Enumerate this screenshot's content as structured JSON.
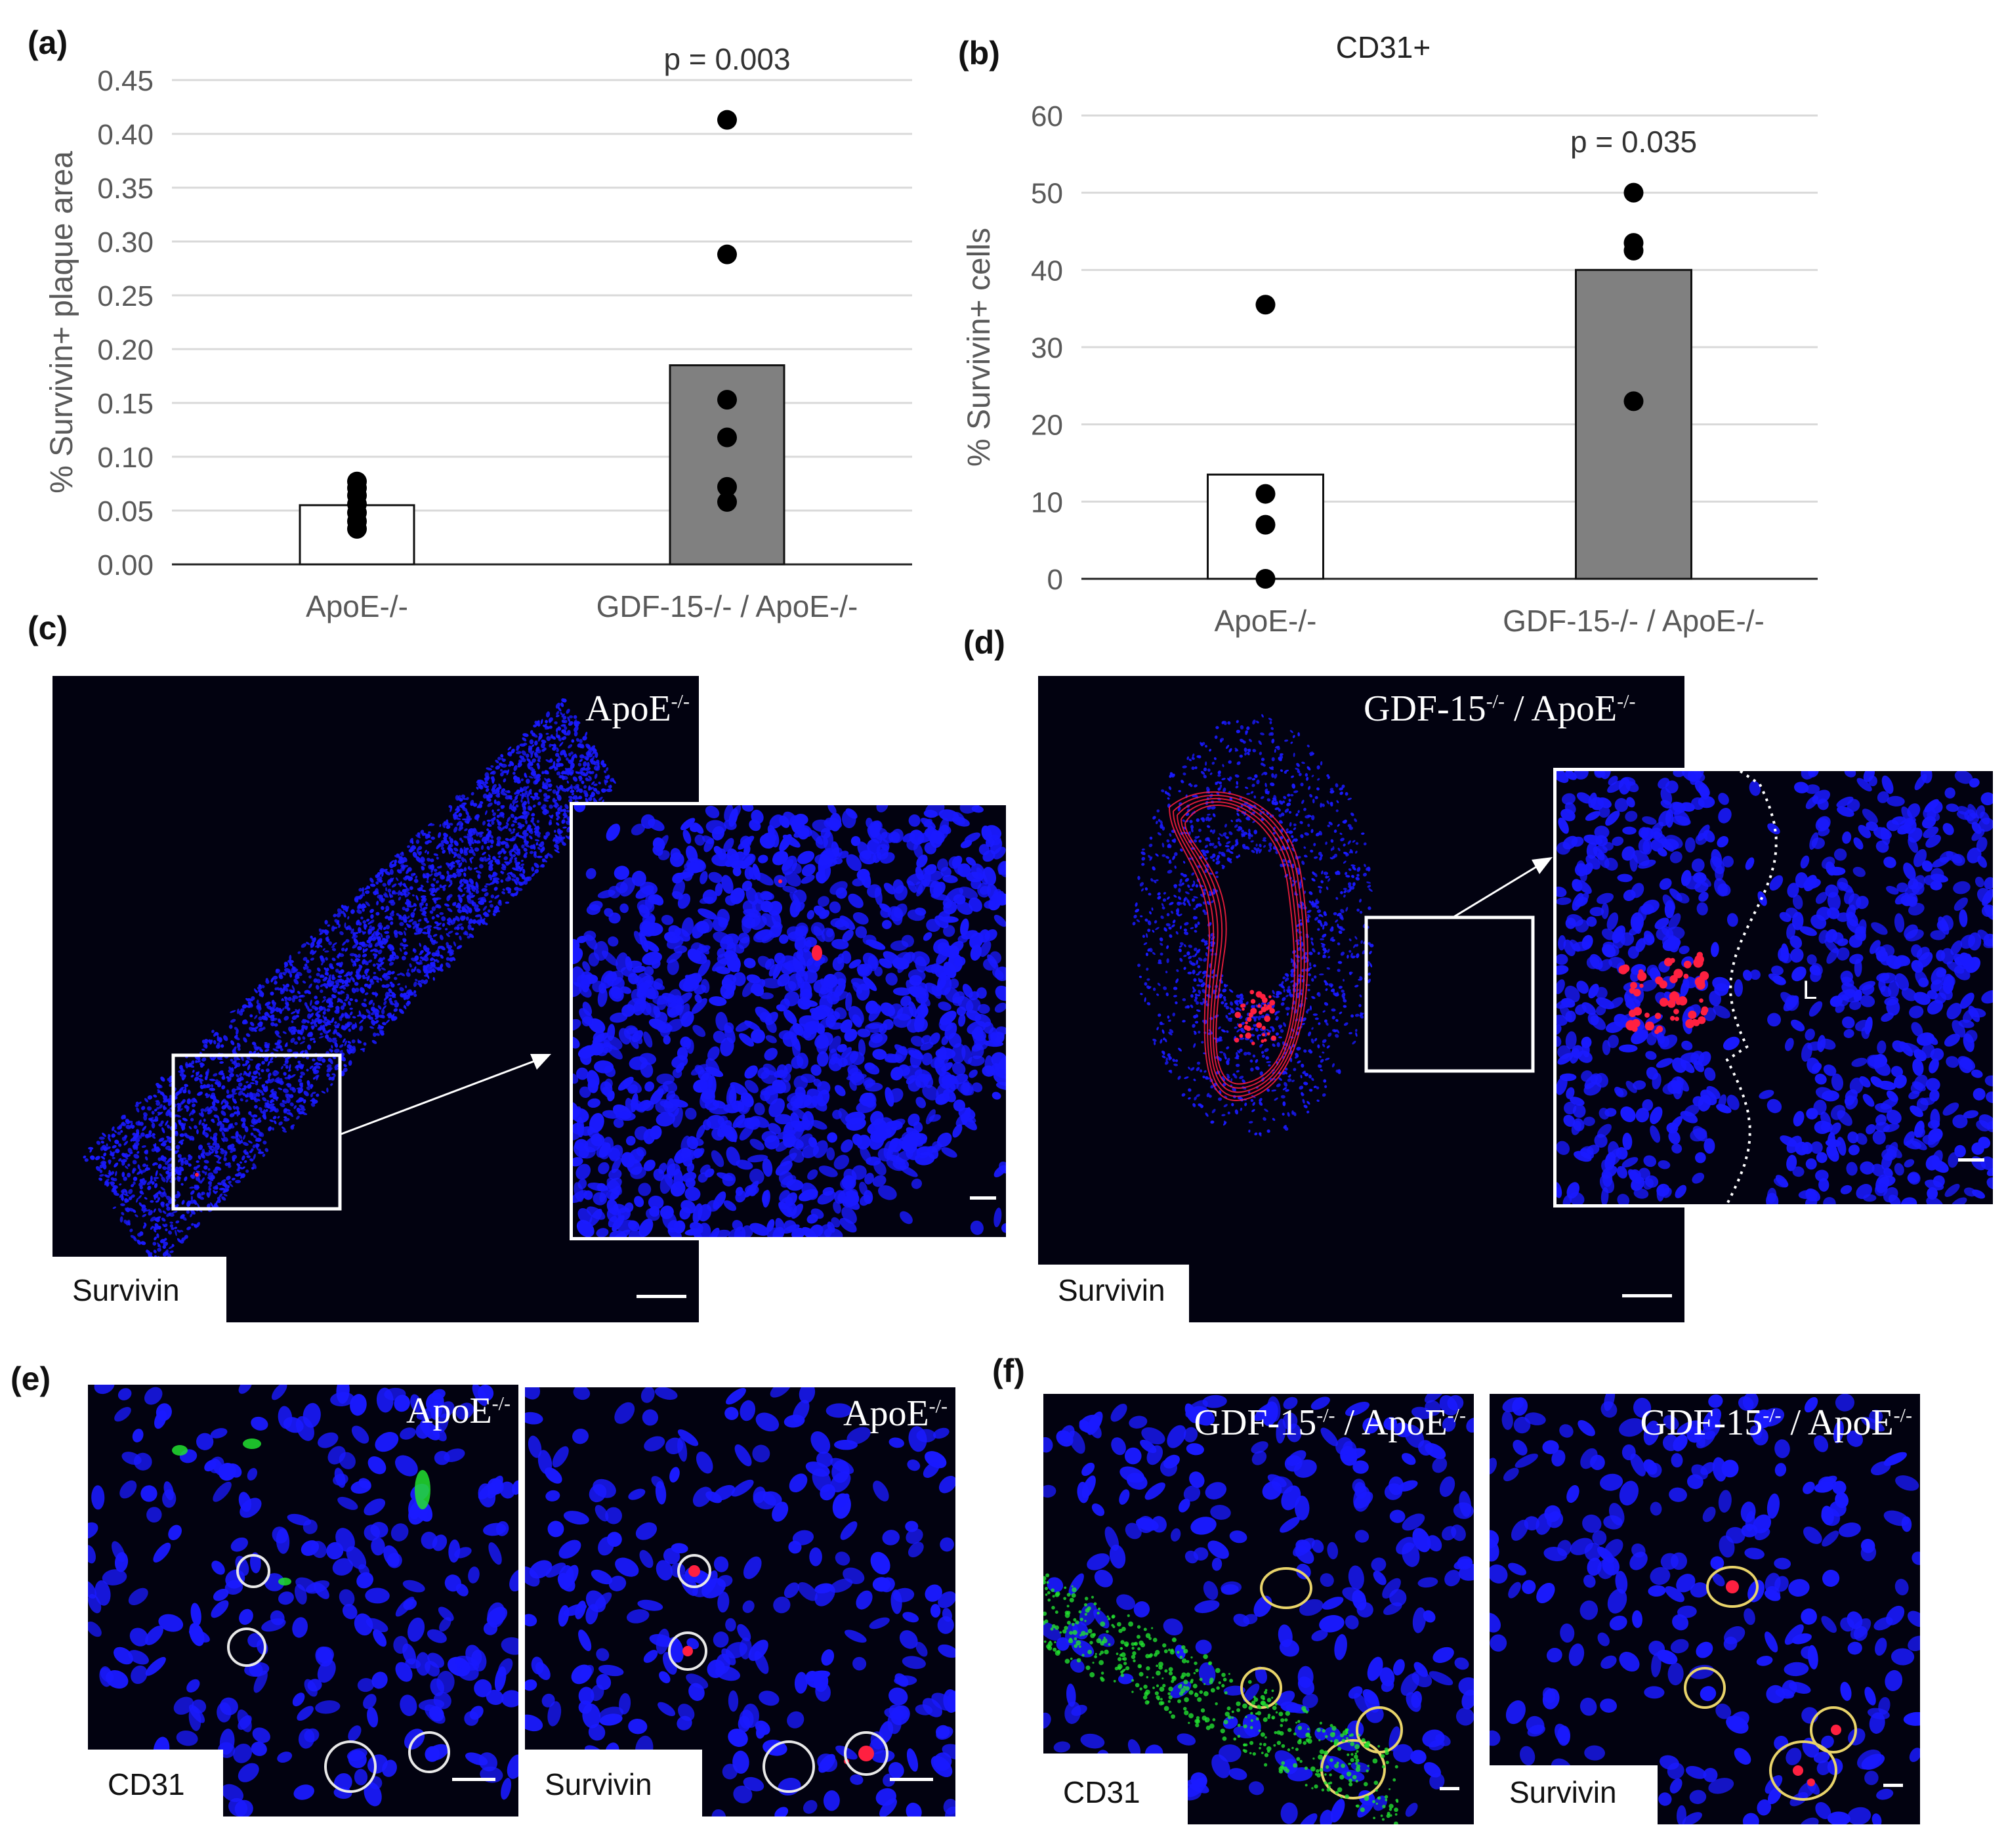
{
  "panels": {
    "a": "(a)",
    "b": "(b)",
    "c": "(c)",
    "d": "(d)",
    "e": "(e)",
    "f": "(f)"
  },
  "chart_data": [
    {
      "panel": "(a)",
      "type": "bar",
      "title": "",
      "ylabel": "% Survivin+ plaque area",
      "xlabel": "",
      "categories": [
        "ApoE-/-",
        "GDF-15-/- / ApoE-/-"
      ],
      "ylim": [
        0,
        0.45
      ],
      "yticks": [
        "0.00",
        "0.05",
        "0.10",
        "0.15",
        "0.20",
        "0.25",
        "0.30",
        "0.35",
        "0.40",
        "0.45"
      ],
      "grid": true,
      "series": [
        {
          "values": [
            0.055,
            0.185
          ]
        }
      ],
      "bar_colors": [
        "#ffffff",
        "#808080"
      ],
      "points": [
        [
          0.033,
          0.04,
          0.048,
          0.056,
          0.064,
          0.071,
          0.077
        ],
        [
          0.058,
          0.072,
          0.118,
          0.153,
          0.288,
          0.413
        ]
      ],
      "annotation": "p = 0.003"
    },
    {
      "panel": "(b)",
      "type": "bar",
      "title": "CD31+",
      "ylabel": "% Survivin+ cells",
      "xlabel": "",
      "categories": [
        "ApoE-/-",
        "GDF-15-/- / ApoE-/-"
      ],
      "ylim": [
        0,
        60
      ],
      "yticks": [
        "0",
        "10",
        "20",
        "30",
        "40",
        "50",
        "60"
      ],
      "grid": true,
      "series": [
        {
          "values": [
            13.5,
            40
          ]
        }
      ],
      "bar_colors": [
        "#ffffff",
        "#808080"
      ],
      "points": [
        [
          0,
          7,
          11,
          35.5
        ],
        [
          23,
          42.5,
          43.5,
          50
        ]
      ],
      "annotation": "p = 0.035"
    }
  ],
  "images": {
    "c": {
      "genotype": "ApoE",
      "sup": "-/-",
      "stain": "Survivin"
    },
    "d": {
      "genotype": "GDF-15",
      "sup": "-/-",
      "sep": " / ",
      "genotype2": "ApoE",
      "sup2": "-/-",
      "stain": "Survivin",
      "lumen_label": "L"
    },
    "e1": {
      "genotype": "ApoE",
      "sup": "-/-",
      "stain": "CD31"
    },
    "e2": {
      "genotype": "ApoE",
      "sup": "-/-",
      "stain": "Survivin"
    },
    "f1": {
      "genotype": "GDF-15",
      "sup": "-/-",
      "sep": " / ",
      "genotype2": "ApoE",
      "sup2": "-/-",
      "stain": "CD31"
    },
    "f2": {
      "genotype": "GDF-15",
      "sup": "-/-",
      "sep": " / ",
      "genotype2": "ApoE",
      "sup2": "-/-",
      "stain": "Survivin"
    }
  },
  "colors": {
    "nuclei": "#1a1aff",
    "survivin": "#ff2040",
    "cd31": "#22e030",
    "background": "#020210",
    "circle_white": "#e8e8e8",
    "circle_yellow": "#e8d36a",
    "bar_gray": "#808080"
  }
}
